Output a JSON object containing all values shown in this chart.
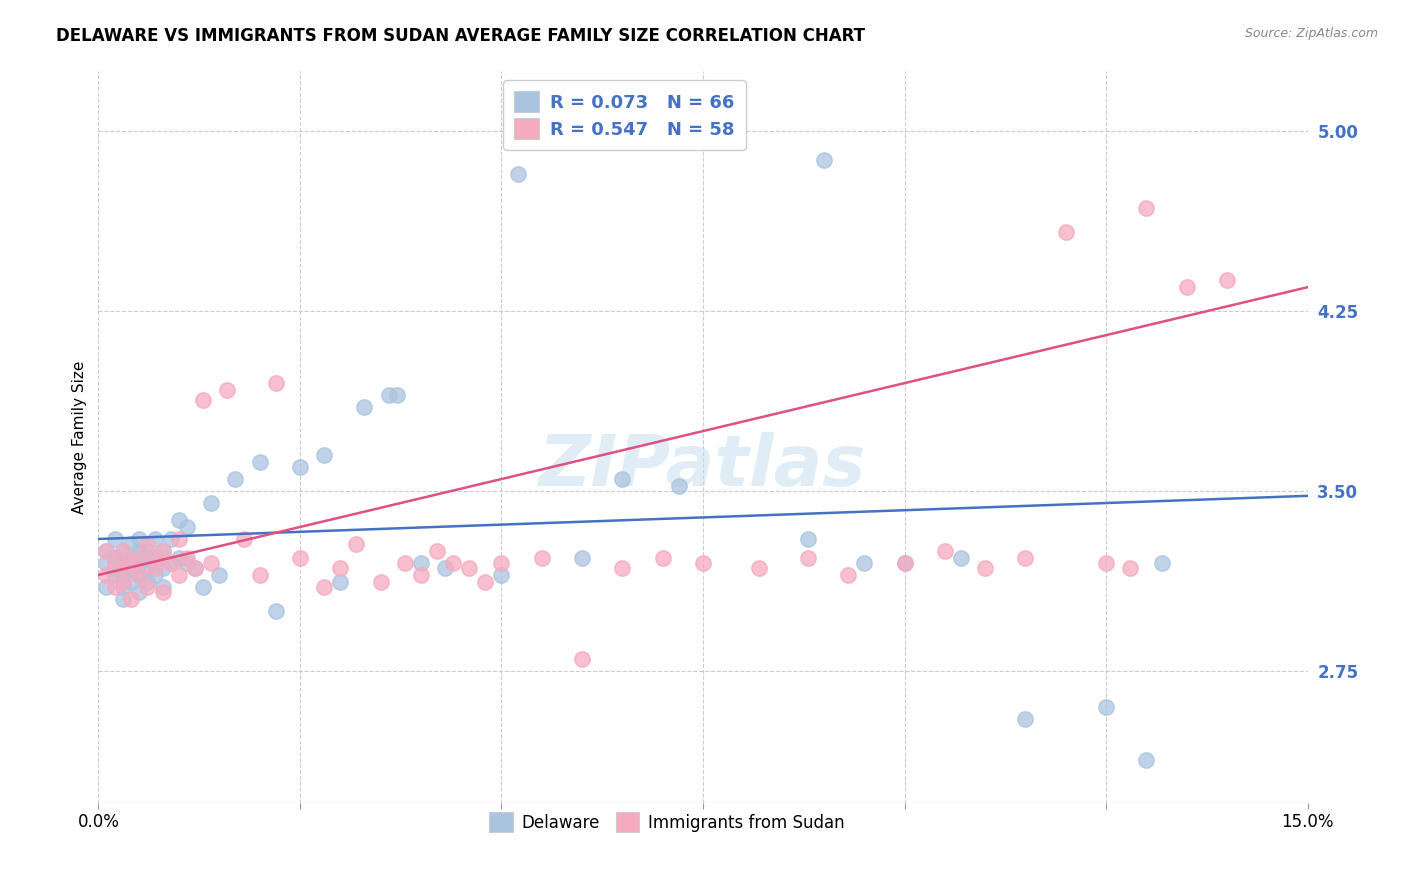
{
  "title": "DELAWARE VS IMMIGRANTS FROM SUDAN AVERAGE FAMILY SIZE CORRELATION CHART",
  "source": "Source: ZipAtlas.com",
  "ylabel": "Average Family Size",
  "xlim": [
    0.0,
    0.15
  ],
  "ylim": [
    2.2,
    5.25
  ],
  "yticks": [
    2.75,
    3.5,
    4.25,
    5.0
  ],
  "xticks": [
    0.0,
    0.025,
    0.05,
    0.075,
    0.1,
    0.125,
    0.15
  ],
  "xticklabels_show": [
    "0.0%",
    "",
    "",
    "",
    "",
    "",
    "15.0%"
  ],
  "delaware_color": "#aac4e0",
  "sudan_color": "#f5aabf",
  "delaware_line_color": "#4472c4",
  "sudan_line_color": "#e05080",
  "tick_color": "#4472c4",
  "r_delaware": 0.073,
  "n_delaware": 66,
  "r_sudan": 0.547,
  "n_sudan": 58,
  "watermark": "ZIPatlas",
  "del_line_y0": 3.3,
  "del_line_y1": 3.48,
  "sud_line_y0": 3.15,
  "sud_line_y1": 4.35,
  "delaware_x": [
    0.001,
    0.001,
    0.001,
    0.002,
    0.002,
    0.002,
    0.002,
    0.003,
    0.003,
    0.003,
    0.003,
    0.003,
    0.004,
    0.004,
    0.004,
    0.004,
    0.005,
    0.005,
    0.005,
    0.005,
    0.005,
    0.006,
    0.006,
    0.006,
    0.006,
    0.007,
    0.007,
    0.007,
    0.008,
    0.008,
    0.008,
    0.009,
    0.009,
    0.01,
    0.01,
    0.011,
    0.011,
    0.012,
    0.013,
    0.014,
    0.015,
    0.017,
    0.02,
    0.022,
    0.025,
    0.028,
    0.03,
    0.033,
    0.036,
    0.037,
    0.04,
    0.043,
    0.05,
    0.052,
    0.06,
    0.065,
    0.072,
    0.088,
    0.09,
    0.095,
    0.1,
    0.107,
    0.115,
    0.125,
    0.13,
    0.132
  ],
  "delaware_y": [
    3.2,
    3.1,
    3.25,
    3.15,
    3.22,
    3.3,
    3.18,
    3.2,
    3.25,
    3.1,
    3.15,
    3.05,
    3.22,
    3.18,
    3.28,
    3.12,
    3.2,
    3.15,
    3.08,
    3.25,
    3.3,
    3.18,
    3.22,
    3.12,
    3.25,
    3.3,
    3.15,
    3.2,
    3.25,
    3.18,
    3.1,
    3.3,
    3.2,
    3.38,
    3.22,
    3.35,
    3.2,
    3.18,
    3.1,
    3.45,
    3.15,
    3.55,
    3.62,
    3.0,
    3.6,
    3.65,
    3.12,
    3.85,
    3.9,
    3.9,
    3.2,
    3.18,
    3.15,
    4.82,
    3.22,
    3.55,
    3.52,
    3.3,
    4.88,
    3.2,
    3.2,
    3.22,
    2.55,
    2.6,
    2.38,
    3.2
  ],
  "sudan_x": [
    0.001,
    0.001,
    0.002,
    0.002,
    0.003,
    0.003,
    0.003,
    0.004,
    0.004,
    0.005,
    0.005,
    0.006,
    0.006,
    0.007,
    0.007,
    0.008,
    0.008,
    0.009,
    0.01,
    0.01,
    0.011,
    0.012,
    0.013,
    0.014,
    0.016,
    0.018,
    0.02,
    0.022,
    0.025,
    0.028,
    0.03,
    0.032,
    0.035,
    0.038,
    0.04,
    0.042,
    0.044,
    0.046,
    0.048,
    0.05,
    0.055,
    0.06,
    0.065,
    0.07,
    0.075,
    0.082,
    0.088,
    0.093,
    0.1,
    0.105,
    0.11,
    0.115,
    0.12,
    0.125,
    0.128,
    0.13,
    0.135,
    0.14
  ],
  "sudan_y": [
    3.15,
    3.25,
    3.2,
    3.1,
    3.18,
    3.25,
    3.12,
    3.2,
    3.05,
    3.22,
    3.15,
    3.28,
    3.1,
    3.22,
    3.18,
    3.25,
    3.08,
    3.2,
    3.3,
    3.15,
    3.22,
    3.18,
    3.88,
    3.2,
    3.92,
    3.3,
    3.15,
    3.95,
    3.22,
    3.1,
    3.18,
    3.28,
    3.12,
    3.2,
    3.15,
    3.25,
    3.2,
    3.18,
    3.12,
    3.2,
    3.22,
    2.8,
    3.18,
    3.22,
    3.2,
    3.18,
    3.22,
    3.15,
    3.2,
    3.25,
    3.18,
    3.22,
    4.58,
    3.2,
    3.18,
    4.68,
    4.35,
    4.38
  ]
}
